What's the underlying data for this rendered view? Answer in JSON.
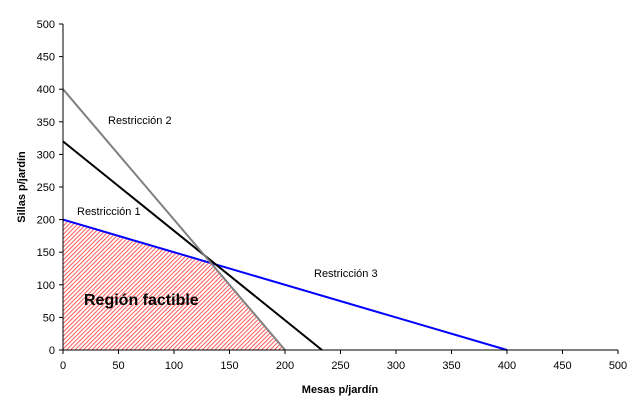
{
  "chart_data": {
    "type": "line",
    "title": "",
    "xlabel": "Mesas p/jardín",
    "ylabel": "Sillas p/jardín",
    "xlim": [
      0,
      500
    ],
    "ylim": [
      0,
      500
    ],
    "x_ticks": [
      0,
      50,
      100,
      150,
      200,
      250,
      300,
      350,
      400,
      450,
      500
    ],
    "y_ticks": [
      0,
      50,
      100,
      150,
      200,
      250,
      300,
      350,
      400,
      450,
      500
    ],
    "grid": false,
    "legend": null,
    "series": [
      {
        "name": "Restricción 1",
        "color": "#000000",
        "points": [
          [
            0,
            320
          ],
          [
            233.3,
            0
          ]
        ]
      },
      {
        "name": "Restricción 2",
        "color": "#808080",
        "points": [
          [
            0,
            400
          ],
          [
            200,
            0
          ]
        ]
      },
      {
        "name": "Restricción 3",
        "color": "#0000ff",
        "points": [
          [
            0,
            200
          ],
          [
            400,
            0
          ]
        ]
      }
    ],
    "feasible_region": {
      "label": "Región factible",
      "color": "#ff0000",
      "fill": "diagonal-hatch",
      "vertices": [
        [
          0,
          0
        ],
        [
          0,
          200
        ],
        [
          133.3,
          133.3
        ],
        [
          200,
          0
        ]
      ]
    },
    "annotations": [
      {
        "text": "Restricción 1",
        "x": 77,
        "y": 215
      },
      {
        "text": "Restricción 2",
        "x": 108,
        "y": 124
      },
      {
        "text": "Restricción 3",
        "x": 314,
        "y": 277
      }
    ]
  },
  "labels": {
    "xlabel": "Mesas p/jardín",
    "ylabel": "Sillas p/jardín",
    "restriccion1": "Restricción 1",
    "restriccion2": "Restricción 2",
    "restriccion3": "Restricción 3",
    "region": "Región factible"
  },
  "colors": {
    "restriccion1": "#000000",
    "restriccion2": "#808080",
    "restriccion3": "#0000ff",
    "hatch": "#ff0000"
  }
}
